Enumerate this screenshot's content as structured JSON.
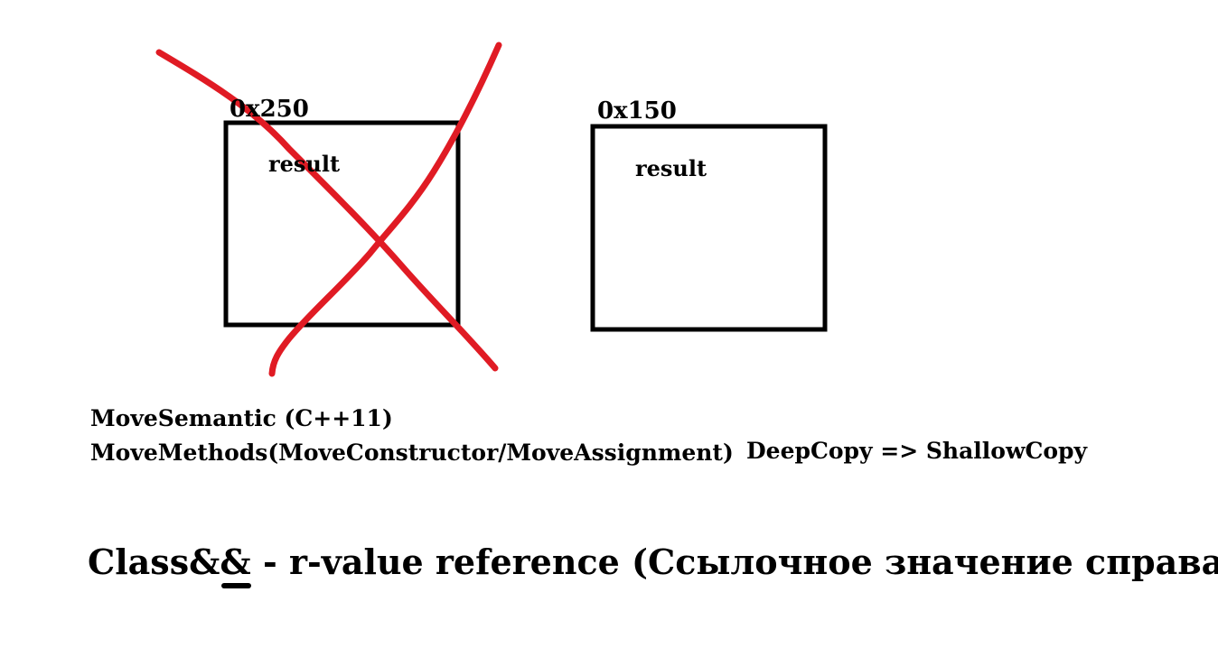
{
  "colors": {
    "ink": "#000000",
    "cross": "#e01b24",
    "background": "#ffffff"
  },
  "boxes": {
    "left": {
      "address": "0x250",
      "label": "result",
      "crossed_out": true
    },
    "right": {
      "address": "0x150",
      "label": "result",
      "crossed_out": false
    }
  },
  "notes": {
    "line1": "MoveSemantic (C++11)",
    "line2": "MoveMethods(MoveConstructor/MoveAssignment)",
    "copy": "DeepCopy => ShallowCopy"
  },
  "footer": {
    "prefix": "Class&",
    "underlined": "&",
    "suffix": " - r-value reference (Ссылочное значение справа)"
  }
}
